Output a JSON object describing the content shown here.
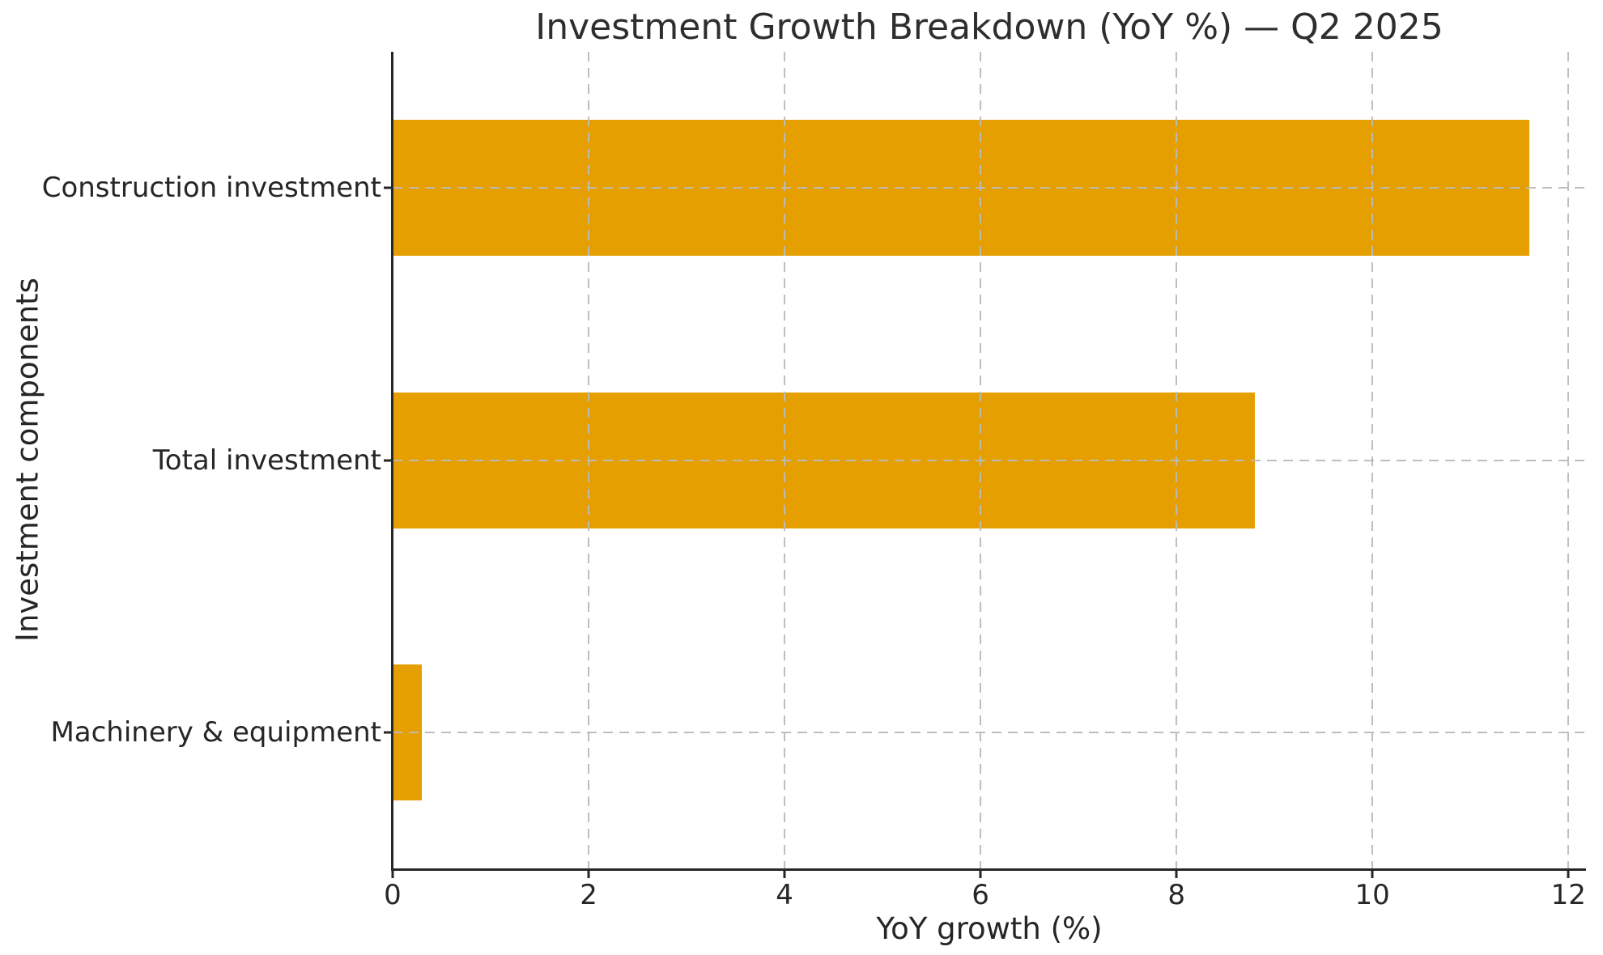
{
  "chart_data": {
    "type": "bar",
    "orientation": "horizontal",
    "title": "Investment Growth Breakdown (YoY %) — Q2 2025",
    "categories": [
      "Construction investment",
      "Total investment",
      "Machinery & equipment"
    ],
    "values": [
      11.6,
      8.8,
      0.3
    ],
    "xlabel": "YoY growth (%)",
    "ylabel": "Investment components",
    "xlim": [
      0,
      12.18
    ],
    "xticks": [
      0,
      2,
      4,
      6,
      8,
      10,
      12
    ],
    "grid": "dashed, both axes, drawn over bars",
    "legend": "none",
    "bar_color": "#E69F00"
  },
  "colors": {
    "bar": "#E69F00",
    "grid": "#bbbbbb",
    "spine": "#262626",
    "text": "#262626",
    "background": "#ffffff"
  }
}
